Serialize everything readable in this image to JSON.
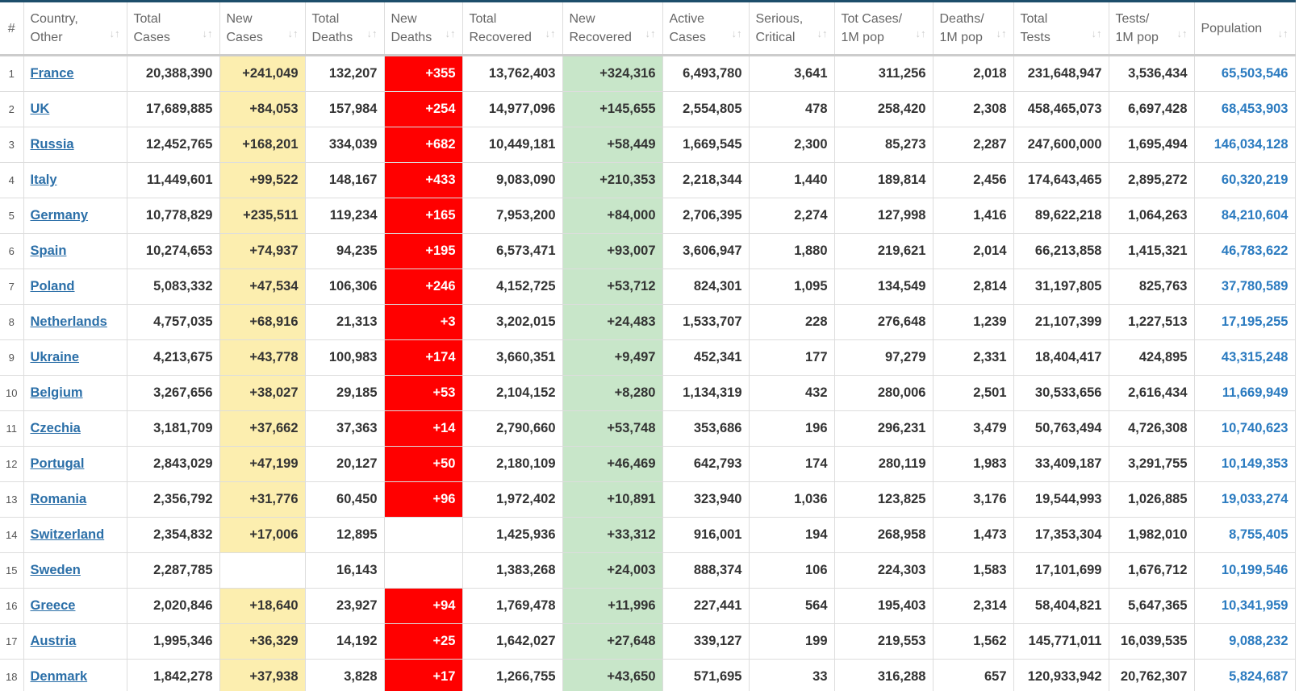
{
  "table": {
    "headers": [
      [
        "#"
      ],
      [
        "Country,",
        "Other"
      ],
      [
        "Total",
        "Cases"
      ],
      [
        "New",
        "Cases"
      ],
      [
        "Total",
        "Deaths"
      ],
      [
        "New",
        "Deaths"
      ],
      [
        "Total",
        "Recovered"
      ],
      [
        "New",
        "Recovered"
      ],
      [
        "Active",
        "Cases"
      ],
      [
        "Serious,",
        "Critical"
      ],
      [
        "Tot Cases/",
        "1M pop"
      ],
      [
        "Deaths/",
        "1M pop"
      ],
      [
        "Total",
        "Tests"
      ],
      [
        "Tests/",
        "1M pop"
      ],
      [
        "Population"
      ]
    ],
    "rows": [
      [
        "1",
        "France",
        "20,388,390",
        "+241,049",
        "132,207",
        "+355",
        "13,762,403",
        "+324,316",
        "6,493,780",
        "3,641",
        "311,256",
        "2,018",
        "231,648,947",
        "3,536,434",
        "65,503,546"
      ],
      [
        "2",
        "UK",
        "17,689,885",
        "+84,053",
        "157,984",
        "+254",
        "14,977,096",
        "+145,655",
        "2,554,805",
        "478",
        "258,420",
        "2,308",
        "458,465,073",
        "6,697,428",
        "68,453,903"
      ],
      [
        "3",
        "Russia",
        "12,452,765",
        "+168,201",
        "334,039",
        "+682",
        "10,449,181",
        "+58,449",
        "1,669,545",
        "2,300",
        "85,273",
        "2,287",
        "247,600,000",
        "1,695,494",
        "146,034,128"
      ],
      [
        "4",
        "Italy",
        "11,449,601",
        "+99,522",
        "148,167",
        "+433",
        "9,083,090",
        "+210,353",
        "2,218,344",
        "1,440",
        "189,814",
        "2,456",
        "174,643,465",
        "2,895,272",
        "60,320,219"
      ],
      [
        "5",
        "Germany",
        "10,778,829",
        "+235,511",
        "119,234",
        "+165",
        "7,953,200",
        "+84,000",
        "2,706,395",
        "2,274",
        "127,998",
        "1,416",
        "89,622,218",
        "1,064,263",
        "84,210,604"
      ],
      [
        "6",
        "Spain",
        "10,274,653",
        "+74,937",
        "94,235",
        "+195",
        "6,573,471",
        "+93,007",
        "3,606,947",
        "1,880",
        "219,621",
        "2,014",
        "66,213,858",
        "1,415,321",
        "46,783,622"
      ],
      [
        "7",
        "Poland",
        "5,083,332",
        "+47,534",
        "106,306",
        "+246",
        "4,152,725",
        "+53,712",
        "824,301",
        "1,095",
        "134,549",
        "2,814",
        "31,197,805",
        "825,763",
        "37,780,589"
      ],
      [
        "8",
        "Netherlands",
        "4,757,035",
        "+68,916",
        "21,313",
        "+3",
        "3,202,015",
        "+24,483",
        "1,533,707",
        "228",
        "276,648",
        "1,239",
        "21,107,399",
        "1,227,513",
        "17,195,255"
      ],
      [
        "9",
        "Ukraine",
        "4,213,675",
        "+43,778",
        "100,983",
        "+174",
        "3,660,351",
        "+9,497",
        "452,341",
        "177",
        "97,279",
        "2,331",
        "18,404,417",
        "424,895",
        "43,315,248"
      ],
      [
        "10",
        "Belgium",
        "3,267,656",
        "+38,027",
        "29,185",
        "+53",
        "2,104,152",
        "+8,280",
        "1,134,319",
        "432",
        "280,006",
        "2,501",
        "30,533,656",
        "2,616,434",
        "11,669,949"
      ],
      [
        "11",
        "Czechia",
        "3,181,709",
        "+37,662",
        "37,363",
        "+14",
        "2,790,660",
        "+53,748",
        "353,686",
        "196",
        "296,231",
        "3,479",
        "50,763,494",
        "4,726,308",
        "10,740,623"
      ],
      [
        "12",
        "Portugal",
        "2,843,029",
        "+47,199",
        "20,127",
        "+50",
        "2,180,109",
        "+46,469",
        "642,793",
        "174",
        "280,119",
        "1,983",
        "33,409,187",
        "3,291,755",
        "10,149,353"
      ],
      [
        "13",
        "Romania",
        "2,356,792",
        "+31,776",
        "60,450",
        "+96",
        "1,972,402",
        "+10,891",
        "323,940",
        "1,036",
        "123,825",
        "3,176",
        "19,544,993",
        "1,026,885",
        "19,033,274"
      ],
      [
        "14",
        "Switzerland",
        "2,354,832",
        "+17,006",
        "12,895",
        null,
        "1,425,936",
        "+33,312",
        "916,001",
        "194",
        "268,958",
        "1,473",
        "17,353,304",
        "1,982,010",
        "8,755,405"
      ],
      [
        "15",
        "Sweden",
        "2,287,785",
        null,
        "16,143",
        null,
        "1,383,268",
        "+24,003",
        "888,374",
        "106",
        "224,303",
        "1,583",
        "17,101,699",
        "1,676,712",
        "10,199,546"
      ],
      [
        "16",
        "Greece",
        "2,020,846",
        "+18,640",
        "23,927",
        "+94",
        "1,769,478",
        "+11,996",
        "227,441",
        "564",
        "195,403",
        "2,314",
        "58,404,821",
        "5,647,365",
        "10,341,959"
      ],
      [
        "17",
        "Austria",
        "1,995,346",
        "+36,329",
        "14,192",
        "+25",
        "1,642,027",
        "+27,648",
        "339,127",
        "199",
        "219,553",
        "1,562",
        "145,771,011",
        "16,039,535",
        "9,088,232"
      ],
      [
        "18",
        "Denmark",
        "1,842,278",
        "+37,938",
        "3,828",
        "+17",
        "1,266,755",
        "+43,650",
        "571,695",
        "33",
        "316,288",
        "657",
        "120,933,942",
        "20,762,307",
        "5,824,687"
      ]
    ]
  }
}
